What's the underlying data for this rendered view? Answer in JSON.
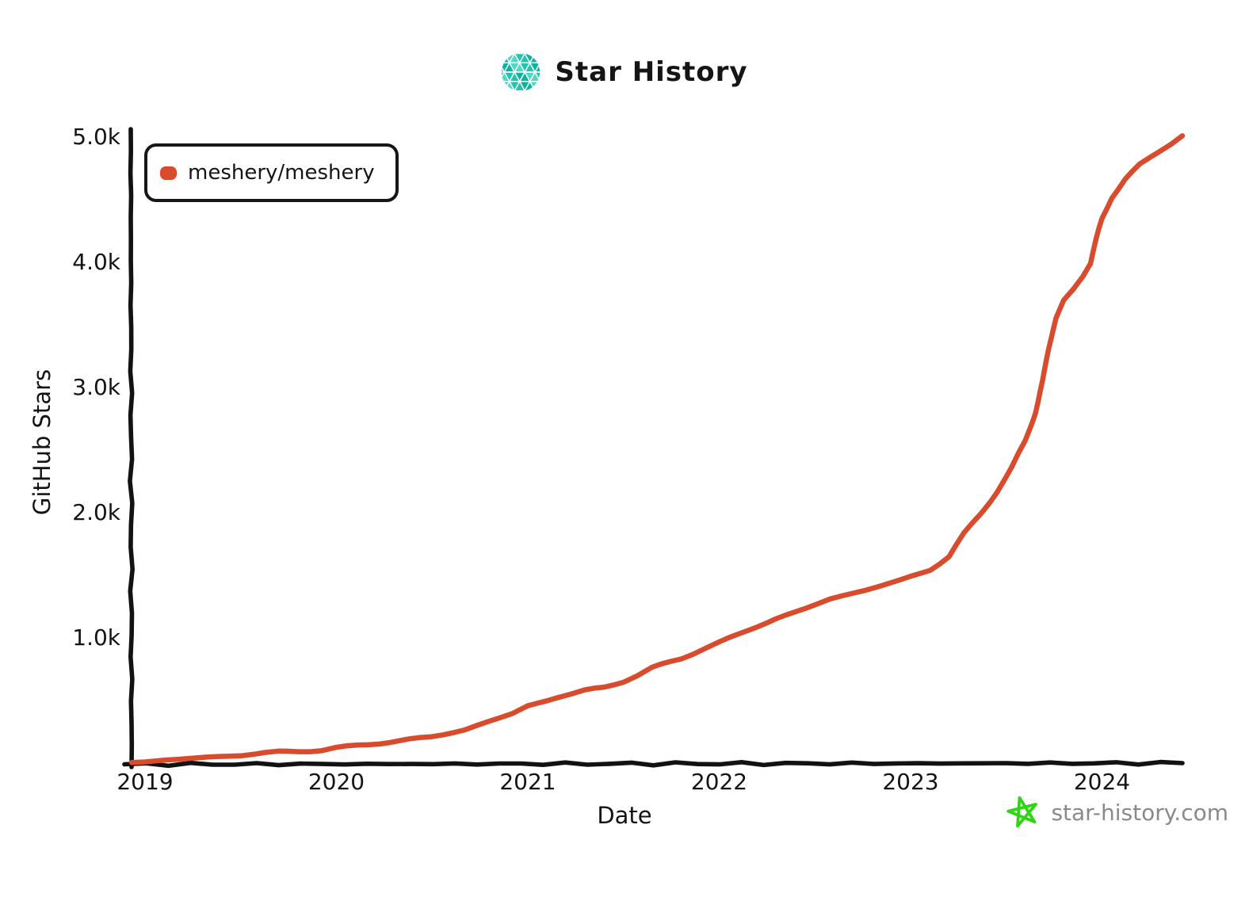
{
  "header": {
    "title": "Star History"
  },
  "legend": {
    "series_label": "meshery/meshery"
  },
  "colors": {
    "accent_red": "#d84b2d",
    "axis_black": "#121212",
    "logo_teal_dark": "#0db3a1",
    "logo_teal_mid": "#23c3b0",
    "logo_teal_light": "#4fd8c4",
    "star_green": "#2fd412",
    "footer_gray": "#8a8a8a"
  },
  "chart_data": {
    "type": "line",
    "title": "Star History",
    "xlabel": "Date",
    "ylabel": "GitHub Stars",
    "grid": false,
    "legend_position": "top-left",
    "xlim": [
      2018.93,
      2024.5
    ],
    "ylim": [
      0,
      5000
    ],
    "x_ticks": [
      {
        "value": 2019,
        "label": "2019"
      },
      {
        "value": 2020,
        "label": "2020"
      },
      {
        "value": 2021,
        "label": "2021"
      },
      {
        "value": 2022,
        "label": "2022"
      },
      {
        "value": 2023,
        "label": "2023"
      },
      {
        "value": 2024,
        "label": "2024"
      }
    ],
    "y_ticks": [
      {
        "value": 1000,
        "label": "1.0k"
      },
      {
        "value": 2000,
        "label": "2.0k"
      },
      {
        "value": 3000,
        "label": "3.0k"
      },
      {
        "value": 4000,
        "label": "4.0k"
      },
      {
        "value": 5000,
        "label": "5.0k"
      }
    ],
    "series": [
      {
        "name": "meshery/meshery",
        "color": "#d84b2d",
        "points": [
          [
            2018.93,
            5
          ],
          [
            2019.0,
            12
          ],
          [
            2019.17,
            30
          ],
          [
            2019.33,
            48
          ],
          [
            2019.5,
            62
          ],
          [
            2019.63,
            82
          ],
          [
            2019.7,
            90
          ],
          [
            2019.8,
            94
          ],
          [
            2019.92,
            103
          ],
          [
            2020.0,
            122
          ],
          [
            2020.17,
            150
          ],
          [
            2020.33,
            178
          ],
          [
            2020.5,
            212
          ],
          [
            2020.67,
            265
          ],
          [
            2020.79,
            330
          ],
          [
            2020.92,
            395
          ],
          [
            2021.0,
            455
          ],
          [
            2021.15,
            525
          ],
          [
            2021.3,
            580
          ],
          [
            2021.4,
            605
          ],
          [
            2021.5,
            655
          ],
          [
            2021.57,
            700
          ],
          [
            2021.65,
            760
          ],
          [
            2021.8,
            835
          ],
          [
            2021.92,
            915
          ],
          [
            2022.0,
            965
          ],
          [
            2022.15,
            1060
          ],
          [
            2022.3,
            1155
          ],
          [
            2022.45,
            1235
          ],
          [
            2022.58,
            1310
          ],
          [
            2022.7,
            1360
          ],
          [
            2022.83,
            1410
          ],
          [
            2022.92,
            1445
          ],
          [
            2023.0,
            1485
          ],
          [
            2023.1,
            1545
          ],
          [
            2023.2,
            1650
          ],
          [
            2023.28,
            1830
          ],
          [
            2023.37,
            2000
          ],
          [
            2023.45,
            2170
          ],
          [
            2023.53,
            2360
          ],
          [
            2023.6,
            2570
          ],
          [
            2023.65,
            2800
          ],
          [
            2023.69,
            3050
          ],
          [
            2023.72,
            3300
          ],
          [
            2023.76,
            3550
          ],
          [
            2023.8,
            3700
          ],
          [
            2023.85,
            3790
          ],
          [
            2023.9,
            3890
          ],
          [
            2023.94,
            3990
          ],
          [
            2023.97,
            4180
          ],
          [
            2024.0,
            4350
          ],
          [
            2024.05,
            4520
          ],
          [
            2024.12,
            4660
          ],
          [
            2024.2,
            4780
          ],
          [
            2024.3,
            4890
          ],
          [
            2024.42,
            5010
          ]
        ]
      }
    ]
  },
  "footer": {
    "site": "star-history.com"
  }
}
